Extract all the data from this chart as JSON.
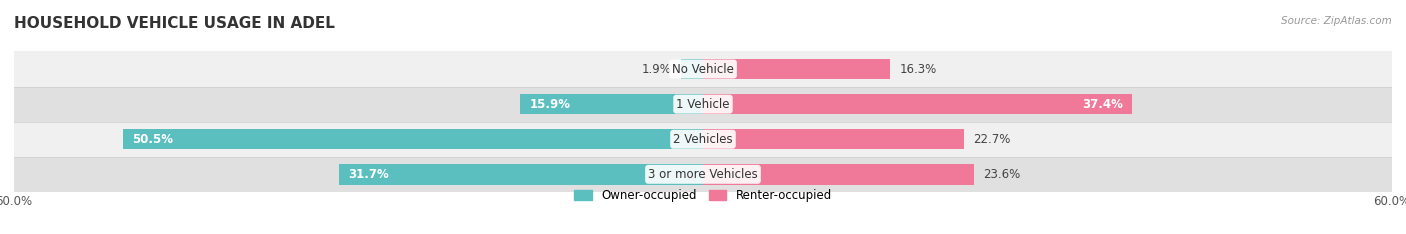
{
  "title": "HOUSEHOLD VEHICLE USAGE IN ADEL",
  "source": "Source: ZipAtlas.com",
  "categories": [
    "No Vehicle",
    "1 Vehicle",
    "2 Vehicles",
    "3 or more Vehicles"
  ],
  "owner_values": [
    1.9,
    15.9,
    50.5,
    31.7
  ],
  "renter_values": [
    16.3,
    37.4,
    22.7,
    23.6
  ],
  "owner_color": "#5bbfbf",
  "renter_color": "#f07898",
  "owner_label": "Owner-occupied",
  "renter_label": "Renter-occupied",
  "axis_max": 60.0,
  "bg_color": "#ffffff",
  "row_bg_light": "#f0f0f0",
  "row_bg_dark": "#e0e0e0",
  "title_fontsize": 11,
  "label_fontsize": 8.5,
  "bar_height": 0.58
}
